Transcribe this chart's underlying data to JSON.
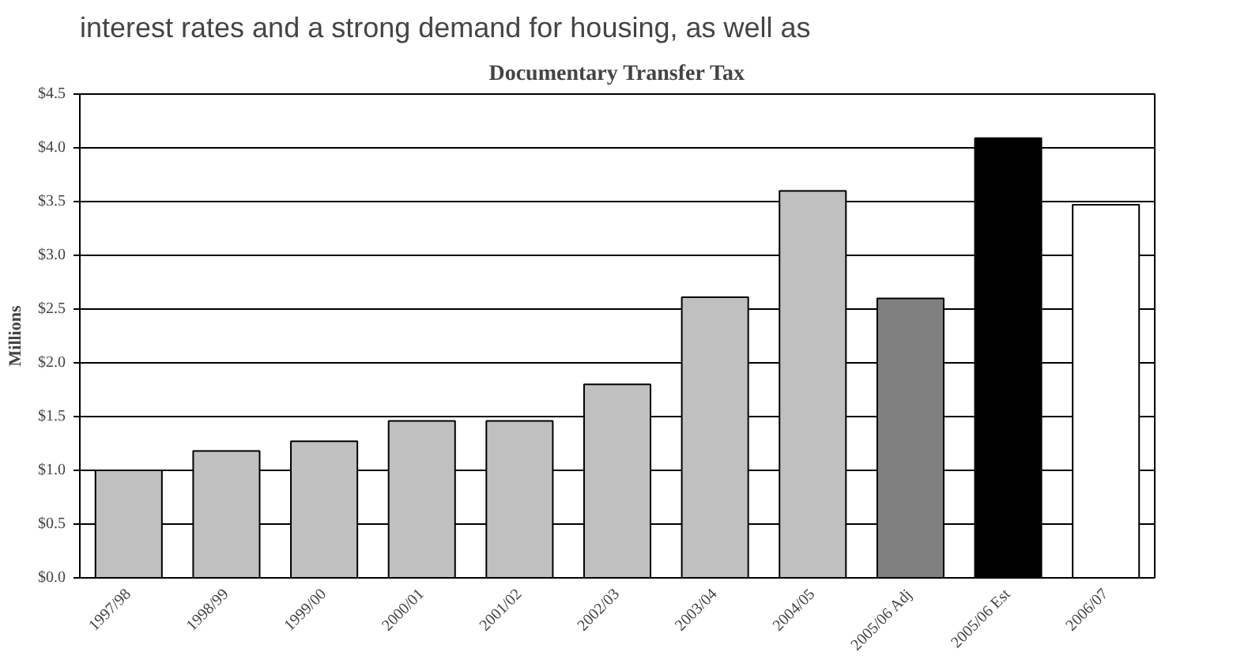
{
  "chart_data": {
    "type": "bar",
    "title": "Documentary Transfer Tax",
    "ylabel": "Millions",
    "annotations": [
      "interest rates and a strong demand for housing, as well as"
    ],
    "categories": [
      "1997/98",
      "1998/99",
      "1999/00",
      "2000/01",
      "2001/02",
      "2002/03",
      "2003/04",
      "2004/05",
      "2005/06 Adj",
      "2005/06 Est",
      "2006/07"
    ],
    "values": [
      1.0,
      1.18,
      1.27,
      1.46,
      1.46,
      1.8,
      2.61,
      3.6,
      2.6,
      4.09,
      3.47
    ],
    "colors": [
      "#c0c0c0",
      "#c0c0c0",
      "#c0c0c0",
      "#c0c0c0",
      "#c0c0c0",
      "#c0c0c0",
      "#c0c0c0",
      "#c0c0c0",
      "#808080",
      "#000000",
      "#ffffff"
    ],
    "ylim": [
      0,
      4.5
    ],
    "yticks": [
      {
        "value": 0,
        "label": "$0.0"
      },
      {
        "value": 0.5,
        "label": "$0.5"
      },
      {
        "value": 1.0,
        "label": "$1.0"
      },
      {
        "value": 1.5,
        "label": "$1.5"
      },
      {
        "value": 2.0,
        "label": "$2.0"
      },
      {
        "value": 2.5,
        "label": "$2.5"
      },
      {
        "value": 3.0,
        "label": "$3.0"
      },
      {
        "value": 3.5,
        "label": "$3.5"
      },
      {
        "value": 4.0,
        "label": "$4.0"
      },
      {
        "value": 4.5,
        "label": "$4.5"
      }
    ],
    "grid": "y"
  }
}
